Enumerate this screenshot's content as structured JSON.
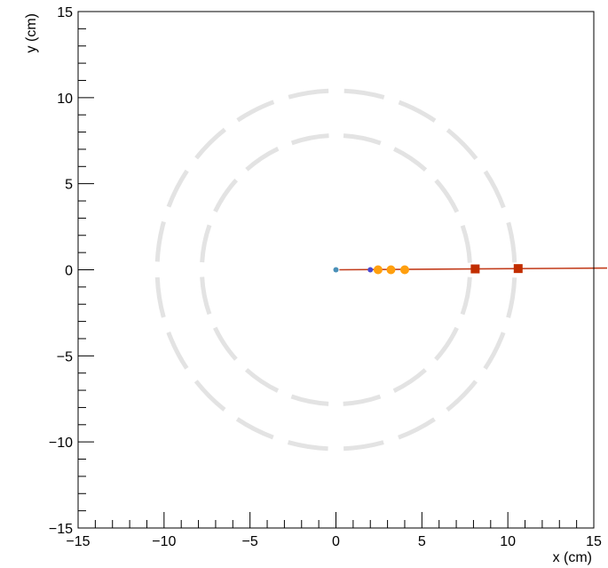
{
  "chart_data": {
    "type": "scatter",
    "xlabel": "x (cm)",
    "ylabel": "y (cm)",
    "xlim": [
      -15,
      15
    ],
    "ylim": [
      -15,
      15
    ],
    "x_ticks": [
      -15,
      -10,
      -5,
      0,
      5,
      10,
      15
    ],
    "y_ticks": [
      -15,
      -10,
      -5,
      0,
      5,
      10,
      15
    ],
    "x_tick_labels": [
      "−15",
      "−10",
      "−5",
      "0",
      "5",
      "10",
      "15"
    ],
    "y_tick_labels": [
      "−15",
      "−10",
      "−5",
      "0",
      "5",
      "10",
      "15"
    ],
    "grid": false,
    "detector_rings": [
      {
        "radius": 7.8,
        "segments": 16,
        "color": "#e3e3e3"
      },
      {
        "radius": 10.4,
        "segments": 20,
        "color": "#e3e3e3"
      }
    ],
    "track": {
      "x": [
        0.2,
        15.9
      ],
      "y": [
        0.0,
        0.1
      ],
      "color": "#c23b1a"
    },
    "series": [
      {
        "marker": "dot",
        "color": "#4a90b8",
        "x": [
          0.0
        ],
        "y": [
          0.0
        ]
      },
      {
        "marker": "dot",
        "color": "#4a4ad0",
        "x": [
          2.0
        ],
        "y": [
          0.0
        ]
      },
      {
        "marker": "circle",
        "color": "#ff9f0e",
        "x": [
          2.45,
          3.2,
          4.0
        ],
        "y": [
          0.0,
          0.0,
          0.0
        ]
      },
      {
        "marker": "square",
        "color": "#c22e00",
        "x": [
          8.1,
          10.6
        ],
        "y": [
          0.05,
          0.07
        ]
      }
    ]
  }
}
